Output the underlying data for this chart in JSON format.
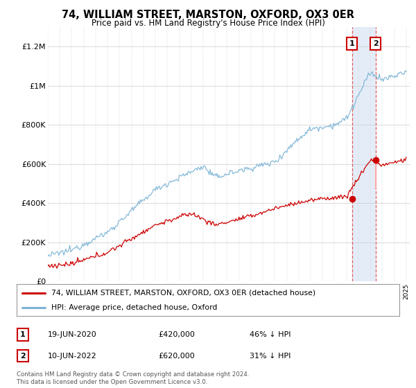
{
  "title": "74, WILLIAM STREET, MARSTON, OXFORD, OX3 0ER",
  "subtitle": "Price paid vs. HM Land Registry's House Price Index (HPI)",
  "ylim": [
    0,
    1300000
  ],
  "yticks": [
    0,
    200000,
    400000,
    600000,
    800000,
    1000000,
    1200000
  ],
  "ytick_labels": [
    "£0",
    "£200K",
    "£400K",
    "£600K",
    "£800K",
    "£1M",
    "£1.2M"
  ],
  "hpi_color": "#7ab3d4",
  "price_color": "#cc0000",
  "shade_color": "#dce8f5",
  "legend1_label": "74, WILLIAM STREET, MARSTON, OXFORD, OX3 0ER (detached house)",
  "legend2_label": "HPI: Average price, detached house, Oxford",
  "sale1_date": "19-JUN-2020",
  "sale1_price": "£420,000",
  "sale1_hpi": "46% ↓ HPI",
  "sale1_year": 2020.46,
  "sale1_value": 420000,
  "sale2_date": "10-JUN-2022",
  "sale2_price": "£620,000",
  "sale2_hpi": "31% ↓ HPI",
  "sale2_year": 2022.44,
  "sale2_value": 620000,
  "footer": "Contains HM Land Registry data © Crown copyright and database right 2024.\nThis data is licensed under the Open Government Licence v3.0.",
  "xstart": 1995,
  "xend": 2025
}
